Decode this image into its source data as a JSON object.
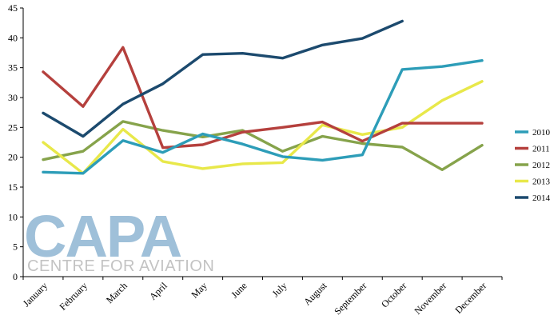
{
  "chart_data": {
    "type": "line",
    "title": "",
    "xlabel": "",
    "ylabel": "",
    "ylim": [
      0,
      45
    ],
    "yticks": [
      0,
      5,
      10,
      15,
      20,
      25,
      30,
      35,
      40,
      45
    ],
    "categories": [
      "January",
      "February",
      "March",
      "April",
      "May",
      "June",
      "July",
      "August",
      "September",
      "October",
      "November",
      "December"
    ],
    "grid": false,
    "legend_position": "right",
    "series": [
      {
        "name": "2010",
        "color": "#2d9db8",
        "values": [
          17.5,
          17.3,
          22.8,
          20.8,
          23.9,
          22.2,
          20.1,
          19.5,
          20.4,
          34.7,
          35.2,
          36.2
        ]
      },
      {
        "name": "2011",
        "color": "#b5403d",
        "values": [
          34.3,
          28.5,
          38.4,
          21.6,
          22.1,
          24.2,
          25.0,
          25.9,
          22.7,
          25.7,
          25.7,
          25.7
        ]
      },
      {
        "name": "2012",
        "color": "#86a34b",
        "values": [
          19.6,
          21.0,
          26.0,
          24.5,
          23.4,
          24.5,
          21.0,
          23.5,
          22.3,
          21.7,
          17.9,
          22.0
        ]
      },
      {
        "name": "2013",
        "color": "#e8e84a",
        "values": [
          22.5,
          17.3,
          24.7,
          19.3,
          18.1,
          18.9,
          19.1,
          25.4,
          23.8,
          25.0,
          29.5,
          32.7
        ]
      },
      {
        "name": "2014",
        "color": "#1c4a6e",
        "values": [
          27.4,
          23.5,
          28.9,
          32.3,
          37.2,
          37.4,
          36.6,
          38.8,
          39.9,
          42.8,
          null,
          null
        ]
      }
    ],
    "watermark": {
      "text": "CAPA",
      "subtext": "CENTRE FOR AVIATION"
    }
  }
}
